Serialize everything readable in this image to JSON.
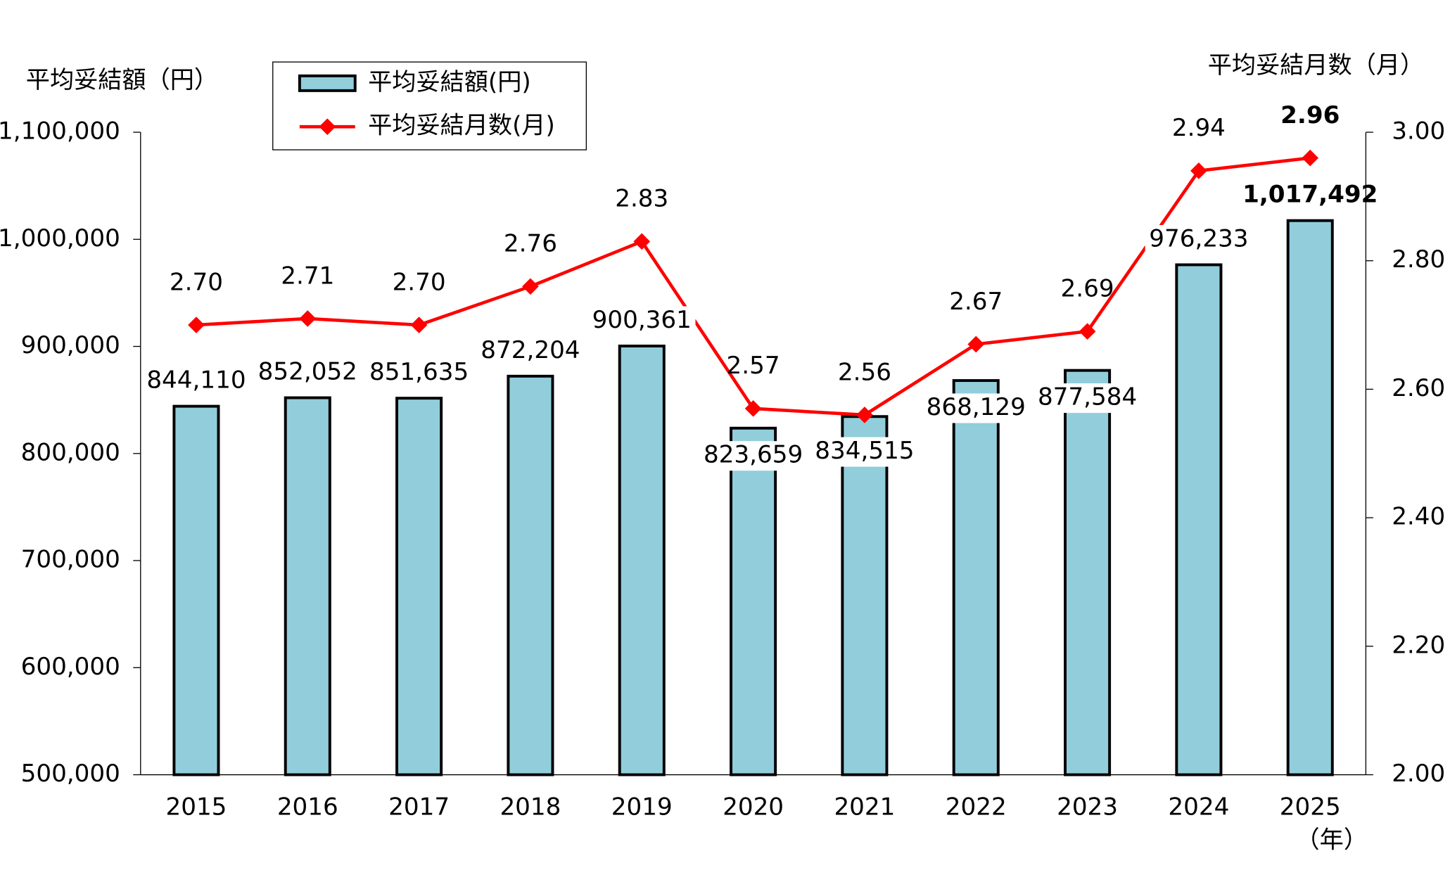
{
  "chart_data": {
    "type": "bar-line",
    "categories": [
      "2015",
      "2016",
      "2017",
      "2018",
      "2019",
      "2020",
      "2021",
      "2022",
      "2023",
      "2024",
      "2025"
    ],
    "x_unit": "（年）",
    "y_title": "平均妥結額（円）",
    "y2_title": "平均妥結月数（月）",
    "series": [
      {
        "name": "平均妥結額(円)",
        "type": "bar",
        "color": "#92cddc",
        "values": [
          844110,
          852052,
          851635,
          872204,
          900361,
          823659,
          834515,
          868129,
          877584,
          976233,
          1017492
        ],
        "value_labels": [
          "844,110",
          "852,052",
          "851,635",
          "872,204",
          "900,361",
          "823,659",
          "834,515",
          "868,129",
          "877,584",
          "976,233",
          "1,017,492"
        ]
      },
      {
        "name": "平均妥結月数(月)",
        "type": "line",
        "axis": "y2",
        "color": "#ff0000",
        "values": [
          2.7,
          2.71,
          2.7,
          2.76,
          2.83,
          2.57,
          2.56,
          2.67,
          2.69,
          2.94,
          2.96
        ],
        "value_labels": [
          "2.70",
          "2.71",
          "2.70",
          "2.76",
          "2.83",
          "2.57",
          "2.56",
          "2.67",
          "2.69",
          "2.94",
          "2.96"
        ]
      }
    ],
    "ylim": [
      500000,
      1100000
    ],
    "yticks": [
      {
        "value": 500000,
        "label": "500,000"
      },
      {
        "value": 600000,
        "label": "600,000"
      },
      {
        "value": 700000,
        "label": "700,000"
      },
      {
        "value": 800000,
        "label": "800,000"
      },
      {
        "value": 900000,
        "label": "900,000"
      },
      {
        "value": 1000000,
        "label": "1,000,000"
      },
      {
        "value": 1100000,
        "label": "1,100,000"
      }
    ],
    "y2lim": [
      2.0,
      3.0
    ],
    "y2ticks": [
      {
        "value": 2.0,
        "label": "2.00"
      },
      {
        "value": 2.2,
        "label": "2.20"
      },
      {
        "value": 2.4,
        "label": "2.40"
      },
      {
        "value": 2.6,
        "label": "2.60"
      },
      {
        "value": 2.8,
        "label": "2.80"
      },
      {
        "value": 3.0,
        "label": "3.00"
      }
    ],
    "legend": "top-left"
  }
}
